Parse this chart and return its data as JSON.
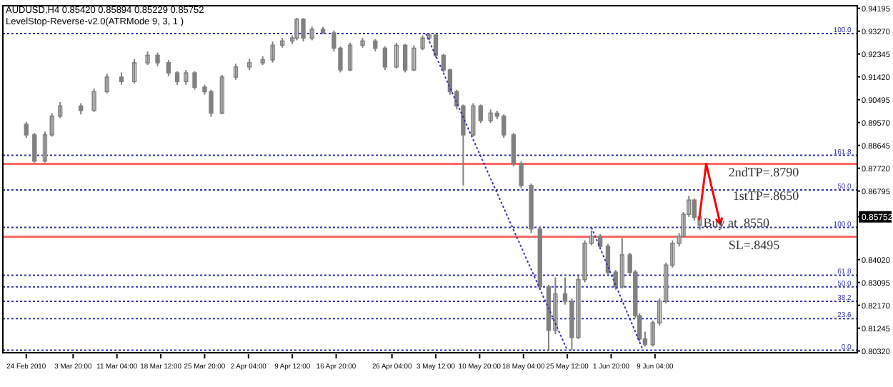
{
  "chart_data": {
    "type": "candlestick",
    "title": "AUDUSD,H4  0.85420 0.85894 0.85229 0.85752",
    "subtitle": "LevelStop-Reverse-v2.0(ATRMode 9, 3, 1 )",
    "color": "#808080",
    "x": [
      "2010-02-24T00:00",
      "2010-02-25T09:00",
      "2010-02-27T03:00",
      "2010-02-28T07:00",
      "2010-03-01T16:00",
      "2010-03-05T03:00",
      "2010-03-07T08:00",
      "2010-03-09T12:00",
      "2010-03-11T22:00",
      "2010-03-14T02:00",
      "2010-03-16T07:00",
      "2010-03-17T23:00",
      "2010-03-19T19:00",
      "2010-03-21T06:00",
      "2010-03-22T17:00",
      "2010-03-24T04:00",
      "2010-03-25T20:00",
      "2010-03-26T22:00",
      "2010-03-28T18:00",
      "2010-03-31T01:00",
      "2010-04-02T08:00",
      "2010-04-04T13:00",
      "2010-04-06T05:00",
      "2010-04-07T20:00",
      "2010-04-09T12:00",
      "2010-04-10T06:00",
      "2010-04-11T08:00",
      "2010-04-12T19:00",
      "2010-04-14T15:00",
      "2010-04-16T11:00",
      "2010-04-17T13:00",
      "2010-04-19T04:00",
      "2010-04-21T06:00",
      "2010-04-23T09:00",
      "2010-04-25T00:00",
      "2010-04-26T22:00",
      "2010-04-28T09:00",
      "2010-04-29T20:00",
      "2010-05-01T07:00",
      "2010-05-02T10:00",
      "2010-05-03T12:00",
      "2010-05-04T19:00",
      "2010-05-05T21:00",
      "2010-05-07T00:00",
      "2010-05-08T02:00",
      "2010-05-09T18:00",
      "2010-05-11T00:00",
      "2010-05-12T16:00",
      "2010-05-13T18:00",
      "2010-05-14T21:00",
      "2010-05-16T12:00",
      "2010-05-17T19:00",
      "2010-05-19T11:00",
      "2010-05-20T22:00",
      "2010-05-22T09:00",
      "2010-05-23T12:00",
      "2010-05-25T03:00",
      "2010-05-26T06:00",
      "2010-05-27T08:00",
      "2010-05-28T10:00",
      "2010-05-29T13:00",
      "2010-05-31T00:00",
      "2010-06-01T07:00",
      "2010-06-02T14:00",
      "2010-06-03T16:00",
      "2010-06-04T23:00",
      "2010-06-05T21:00",
      "2010-06-06T14:00",
      "2010-06-07T12:00",
      "2010-06-08T19:00",
      "2010-06-09T22:00",
      "2010-06-11T00:00",
      "2010-06-12T02:00",
      "2010-06-13T05:00",
      "2010-06-13T22:00",
      "2010-06-14T20:00",
      "2010-06-15T18:00",
      "2010-06-16T16:00"
    ],
    "ohlc": [
      [
        0.895,
        0.896,
        0.8895,
        0.8907
      ],
      [
        0.8907,
        0.8915,
        0.8795,
        0.8801
      ],
      [
        0.8801,
        0.892,
        0.8795,
        0.8907
      ],
      [
        0.8907,
        0.8995,
        0.89,
        0.8983
      ],
      [
        0.8983,
        0.904,
        0.8975,
        0.9024
      ],
      [
        0.9024,
        0.9035,
        0.899,
        0.9006
      ],
      [
        0.9006,
        0.9095,
        0.9,
        0.9082
      ],
      [
        0.9082,
        0.9155,
        0.9075,
        0.9141
      ],
      [
        0.9141,
        0.916,
        0.911,
        0.9123
      ],
      [
        0.9123,
        0.9215,
        0.9115,
        0.9199
      ],
      [
        0.9199,
        0.9245,
        0.919,
        0.9229
      ],
      [
        0.9229,
        0.924,
        0.9185,
        0.9199
      ],
      [
        0.9199,
        0.921,
        0.9145,
        0.9158
      ],
      [
        0.9158,
        0.9165,
        0.911,
        0.9123
      ],
      [
        0.9123,
        0.917,
        0.911,
        0.9158
      ],
      [
        0.9158,
        0.9165,
        0.909,
        0.91
      ],
      [
        0.91,
        0.911,
        0.907,
        0.9082
      ],
      [
        0.9082,
        0.909,
        0.898,
        0.8995
      ],
      [
        0.8995,
        0.915,
        0.899,
        0.9141
      ],
      [
        0.9141,
        0.9195,
        0.913,
        0.9182
      ],
      [
        0.9182,
        0.9215,
        0.917,
        0.9199
      ],
      [
        0.9199,
        0.9225,
        0.919,
        0.9211
      ],
      [
        0.9211,
        0.9285,
        0.92,
        0.927
      ],
      [
        0.927,
        0.93,
        0.926,
        0.9287
      ],
      [
        0.9287,
        0.931,
        0.9275,
        0.9299
      ],
      [
        0.9299,
        0.9381,
        0.929,
        0.9375
      ],
      [
        0.9375,
        0.938,
        0.9285,
        0.9299
      ],
      [
        0.9299,
        0.9345,
        0.929,
        0.9334
      ],
      [
        0.9334,
        0.9345,
        0.9315,
        0.932
      ],
      [
        0.932,
        0.933,
        0.9245,
        0.9258
      ],
      [
        0.9258,
        0.9265,
        0.916,
        0.917
      ],
      [
        0.917,
        0.928,
        0.9165,
        0.927
      ],
      [
        0.927,
        0.93,
        0.926,
        0.9287
      ],
      [
        0.9287,
        0.9295,
        0.9245,
        0.9258
      ],
      [
        0.9258,
        0.9265,
        0.917,
        0.9182
      ],
      [
        0.9182,
        0.928,
        0.9175,
        0.927
      ],
      [
        0.927,
        0.9275,
        0.916,
        0.917
      ],
      [
        0.917,
        0.927,
        0.9165,
        0.9258
      ],
      [
        0.9258,
        0.931,
        0.925,
        0.9299
      ],
      [
        0.9299,
        0.9317,
        0.929,
        0.9311
      ],
      [
        0.9311,
        0.9315,
        0.922,
        0.9229
      ],
      [
        0.9229,
        0.9235,
        0.916,
        0.917
      ],
      [
        0.917,
        0.9175,
        0.907,
        0.9082
      ],
      [
        0.9082,
        0.909,
        0.901,
        0.9024
      ],
      [
        0.9024,
        0.903,
        0.8702,
        0.8907
      ],
      [
        0.8907,
        0.9035,
        0.89,
        0.9024
      ],
      [
        0.9024,
        0.903,
        0.8955,
        0.8965
      ],
      [
        0.8965,
        0.901,
        0.8955,
        0.8995
      ],
      [
        0.8995,
        0.9005,
        0.897,
        0.8983
      ],
      [
        0.8983,
        0.899,
        0.8895,
        0.8907
      ],
      [
        0.8907,
        0.8915,
        0.878,
        0.879
      ],
      [
        0.879,
        0.88,
        0.869,
        0.8702
      ],
      [
        0.8702,
        0.871,
        0.851,
        0.8526
      ],
      [
        0.8526,
        0.8535,
        0.828,
        0.8292
      ],
      [
        0.8292,
        0.83,
        0.8035,
        0.8116
      ],
      [
        0.8116,
        0.833,
        0.81,
        0.8263
      ],
      [
        0.8263,
        0.833,
        0.822,
        0.8234
      ],
      [
        0.8234,
        0.8245,
        0.8035,
        0.8087
      ],
      [
        0.8087,
        0.8335,
        0.808,
        0.8321
      ],
      [
        0.8321,
        0.848,
        0.831,
        0.8468
      ],
      [
        0.8468,
        0.852,
        0.846,
        0.8497
      ],
      [
        0.8497,
        0.8505,
        0.8445,
        0.8456
      ],
      [
        0.8456,
        0.8465,
        0.834,
        0.8351
      ],
      [
        0.8351,
        0.836,
        0.828,
        0.8292
      ],
      [
        0.8292,
        0.849,
        0.8285,
        0.8421
      ],
      [
        0.8421,
        0.843,
        0.834,
        0.8351
      ],
      [
        0.8351,
        0.836,
        0.8165,
        0.8175
      ],
      [
        0.8175,
        0.8185,
        0.807,
        0.8081
      ],
      [
        0.8081,
        0.811,
        0.805,
        0.8058
      ],
      [
        0.8058,
        0.8155,
        0.805,
        0.8146
      ],
      [
        0.8146,
        0.8245,
        0.8135,
        0.8234
      ],
      [
        0.8234,
        0.839,
        0.8225,
        0.838
      ],
      [
        0.838,
        0.848,
        0.837,
        0.8468
      ],
      [
        0.8468,
        0.851,
        0.8455,
        0.8497
      ],
      [
        0.8497,
        0.8595,
        0.849,
        0.8585
      ],
      [
        0.8585,
        0.866,
        0.8575,
        0.8643
      ],
      [
        0.8643,
        0.865,
        0.856,
        0.8573
      ],
      [
        0.8542,
        0.85894,
        0.85229,
        0.85752
      ]
    ],
    "series": [
      {
        "type": "line",
        "x": [
          "2010-05-01T20:00",
          "2010-05-25T12:00"
        ],
        "values": [
          0.9317,
          0.8035
        ],
        "color": "#3333aa",
        "line_style": "dotted"
      },
      {
        "type": "line",
        "x": [
          "2010-05-29T13:00",
          "2010-06-07T04:00"
        ],
        "values": [
          0.8532,
          0.8035
        ],
        "color": "#3333aa",
        "line_style": "dotted"
      }
    ],
    "xlim": [
      "2010-02-20T02:00",
      "2010-07-13T00:00"
    ],
    "xticks": [
      {
        "value": "2010-02-24T00:00",
        "label": "24 Feb 2010"
      },
      {
        "value": "2010-03-03T20:00",
        "label": "3 Mar 20:00"
      },
      {
        "value": "2010-03-11T04:00",
        "label": "11 Mar 04:00"
      },
      {
        "value": "2010-03-18T12:00",
        "label": "18 Mar 12:00"
      },
      {
        "value": "2010-03-25T20:00",
        "label": "25 Mar 20:00"
      },
      {
        "value": "2010-04-02T04:00",
        "label": "2 Apr 04:00"
      },
      {
        "value": "2010-04-09T12:00",
        "label": "9 Apr 12:00"
      },
      {
        "value": "2010-04-16T20:00",
        "label": "16 Apr 20:00"
      },
      {
        "value": "2010-04-26T04:00",
        "label": "26 Apr 04:00"
      },
      {
        "value": "2010-05-03T12:00",
        "label": "3 May 12:00"
      },
      {
        "value": "2010-05-10T20:00",
        "label": "10 May 20:00"
      },
      {
        "value": "2010-05-18T04:00",
        "label": "18 May 04:00"
      },
      {
        "value": "2010-05-25T12:00",
        "label": "25 May 12:00"
      },
      {
        "value": "2010-06-01T20:00",
        "label": "1 Jun 20:00"
      },
      {
        "value": "2010-06-09T04:00",
        "label": "9 Jun 04:00"
      }
    ],
    "ylim": [
      0.8025,
      0.943
    ],
    "yticks": [
      {
        "value": 0.94195,
        "label": "0.94195"
      },
      {
        "value": 0.9327,
        "label": "0.93270"
      },
      0.92345,
      {
        "value": 0.9142,
        "label": "0.91420"
      },
      0.90495,
      {
        "value": 0.8957,
        "label": "0.89570"
      },
      0.88645,
      {
        "value": 0.8772,
        "label": "0.87720"
      },
      0.86795,
      0.85752,
      {
        "value": 0.8402,
        "label": "0.84020"
      },
      0.83095,
      {
        "value": 0.8217,
        "label": "0.82170"
      },
      0.81245,
      {
        "value": 0.8032,
        "label": "0.80320"
      }
    ],
    "ref_lines": [
      {
        "axis": "y",
        "value": 0.9317,
        "color": "#3333aa",
        "line_style": "dotted"
      },
      {
        "axis": "y",
        "value": 0.8824,
        "color": "#3333aa",
        "line_style": "dotted"
      },
      {
        "axis": "y",
        "value": 0.8684,
        "color": "#3333aa",
        "line_style": "dotted"
      },
      {
        "axis": "y",
        "value": 0.8532,
        "color": "#3333aa",
        "line_style": "dotted"
      },
      {
        "axis": "y",
        "value": 0.8339,
        "color": "#3333aa",
        "line_style": "dotted"
      },
      {
        "axis": "y",
        "value": 0.8292,
        "color": "#3333aa",
        "line_style": "dotted"
      },
      {
        "axis": "y",
        "value": 0.8233,
        "color": "#3333aa",
        "line_style": "dotted"
      },
      {
        "axis": "y",
        "value": 0.8163,
        "color": "#3333aa",
        "line_style": "dotted"
      },
      {
        "axis": "y",
        "value": 0.8035,
        "color": "#3333aa",
        "line_style": "dotted"
      },
      {
        "axis": "y",
        "value": 0.879,
        "label": "2ndTP=.8790",
        "color": "#ff6666",
        "line_style": "solid"
      },
      {
        "axis": "y",
        "value": 0.8495,
        "label": "SL=.8495",
        "color": "#ff6666",
        "line_style": "solid"
      }
    ],
    "annotations": [
      {
        "text": "Buy at .8550",
        "x": "2010-06-17T06:00",
        "y": 0.855
      },
      "1stTP=.8650",
      {
        "text": "100.0",
        "x": "2010-07-12T00:00",
        "y": 0.9317
      },
      {
        "text": "161.8",
        "x": "2010-07-12T00:00",
        "y": 0.8824
      },
      {
        "text": "50.0",
        "x": "2010-07-12T00:00",
        "y": 0.8684
      },
      {
        "text": "100.0",
        "x": "2010-07-12T00:00",
        "y": 0.8532
      },
      {
        "text": "61.8",
        "x": "2010-07-12T00:00",
        "y": 0.8339
      },
      {
        "text": "50.0",
        "x": "2010-07-12T00:00",
        "y": 0.8292
      },
      {
        "text": "38.2",
        "x": "2010-07-12T00:00",
        "y": 0.8233
      },
      {
        "text": "23.6",
        "x": "2010-07-12T00:00",
        "y": 0.8163
      },
      {
        "text": "0.0",
        "x": "2010-07-12T00:00",
        "y": 0.8035
      }
    ]
  }
}
